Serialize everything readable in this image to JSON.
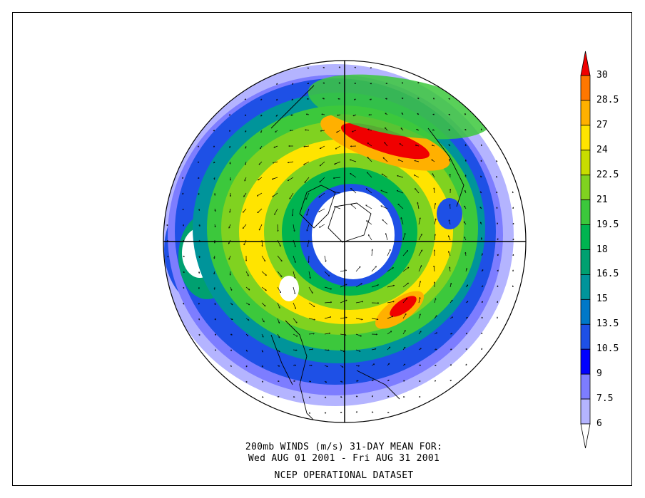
{
  "title_line1": "200mb WINDS (m/s)   31-DAY MEAN FOR:",
  "title_line2": "Wed AUG 01 2001 - Fri AUG 31 2001",
  "title_line3": "NCEP OPERATIONAL DATASET",
  "colorbar": {
    "labels": [
      "30",
      "28.5",
      "27",
      "24",
      "22.5",
      "21",
      "19.5",
      "18",
      "16.5",
      "15",
      "13.5",
      "10.5",
      "9",
      "7.5",
      "6"
    ],
    "colors": [
      "#f00000",
      "#ff7700",
      "#ffb000",
      "#ffe400",
      "#c8dc00",
      "#80d220",
      "#3cc83c",
      "#00b450",
      "#00a070",
      "#00949a",
      "#0078c8",
      "#1e50e6",
      "#0000ff",
      "#7d7dff",
      "#b4b4ff",
      "#ffffff"
    ]
  },
  "map": {
    "projection": "north polar stereographic",
    "field": "200mb wind speed with wind vectors"
  }
}
